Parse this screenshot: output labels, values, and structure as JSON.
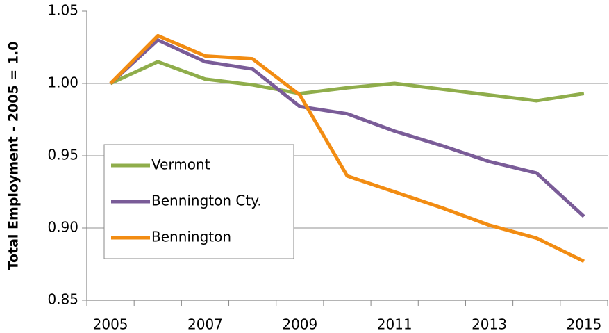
{
  "chart_data": {
    "type": "line",
    "ylabel": "Total Employment - 2005 = 1.0",
    "categories": [
      "2005",
      null,
      "2007",
      null,
      "2009",
      null,
      "2011",
      null,
      "2013",
      null,
      "2015"
    ],
    "series": [
      {
        "name": "Vermont",
        "color": "#8fad4b",
        "values": [
          1.0,
          1.015,
          1.003,
          0.999,
          0.993,
          0.997,
          1.0,
          0.996,
          0.992,
          0.988,
          0.993
        ]
      },
      {
        "name": "Bennington Cty.",
        "color": "#7a5c98",
        "values": [
          1.0,
          1.03,
          1.015,
          1.01,
          0.984,
          0.979,
          0.967,
          0.957,
          0.946,
          0.938,
          0.908
        ]
      },
      {
        "name": "Bennington",
        "color": "#f28c12",
        "values": [
          1.0,
          1.033,
          1.019,
          1.017,
          0.992,
          0.936,
          0.925,
          0.914,
          0.902,
          0.893,
          0.877
        ]
      }
    ],
    "ylim": [
      0.85,
      1.05
    ],
    "yticks": [
      0.85,
      {
        "value": 0.9,
        "label": "0.90"
      },
      0.95,
      {
        "value": 1.0,
        "label": "1.00"
      },
      1.05
    ],
    "grid": true,
    "legend": "lower left"
  }
}
